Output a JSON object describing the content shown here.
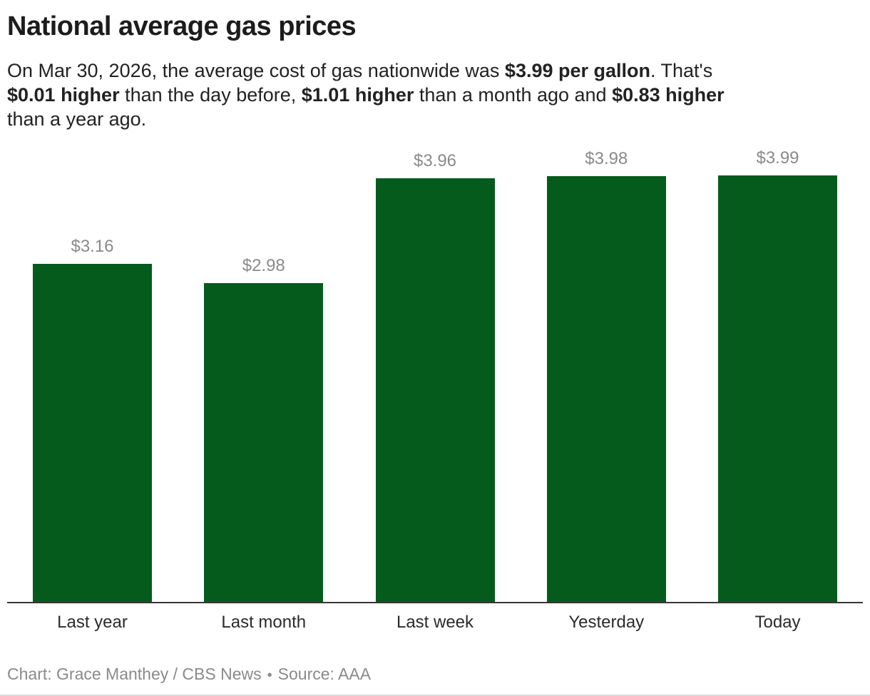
{
  "header": {
    "title": "National average gas prices",
    "subtitle_segments": [
      {
        "text": "On Mar 30, 2026, the average cost of gas nationwide was ",
        "bold": false
      },
      {
        "text": "$3.99 per gallon",
        "bold": true
      },
      {
        "text": ". That's",
        "bold": false
      },
      {
        "break": true
      },
      {
        "text": "$0.01 higher",
        "bold": true
      },
      {
        "text": " than the day before, ",
        "bold": false
      },
      {
        "text": "$1.01 higher",
        "bold": true
      },
      {
        "text": " than a month ago and ",
        "bold": false
      },
      {
        "text": "$0.83 higher",
        "bold": true
      },
      {
        "break": true
      },
      {
        "text": "than a year ago.",
        "bold": false
      }
    ]
  },
  "chart_data": {
    "type": "bar",
    "title": "National average gas prices",
    "categories": [
      "Last year",
      "Last month",
      "Last week",
      "Yesterday",
      "Today"
    ],
    "values": [
      3.16,
      2.98,
      3.96,
      3.98,
      3.99
    ],
    "value_labels": [
      "$3.16",
      "$2.98",
      "$3.96",
      "$3.98",
      "$3.99"
    ],
    "xlabel": "",
    "ylabel": "",
    "ylim": [
      0,
      3.99
    ],
    "grid": false,
    "legend": "none",
    "value_labels_shown": true,
    "y_axis_visible": false,
    "bar_color": "#055b1c",
    "value_label_color": "#8a8a8a",
    "category_label_color": "#2b2b2b",
    "axis_line_color": "#363636"
  },
  "footer": {
    "credit": "Chart: Grace Manthey / CBS News",
    "separator": "•",
    "source": "Source: AAA"
  }
}
